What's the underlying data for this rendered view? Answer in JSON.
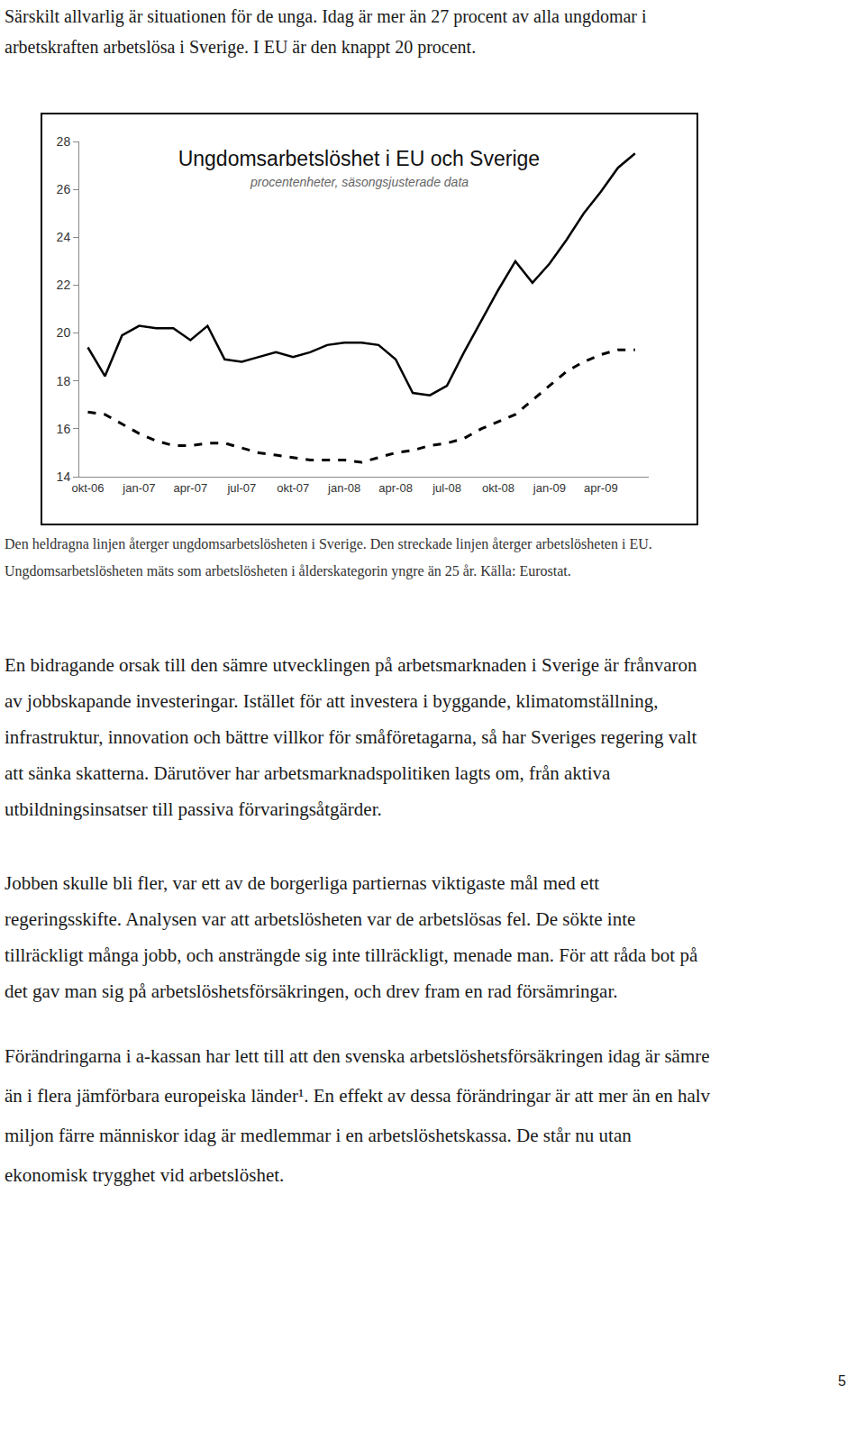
{
  "intro": [
    "Särskilt allvarlig är situationen för de unga. Idag är mer än 27 procent av alla ungdomar i",
    "arbetskraften arbetslösa i Sverige. I EU är den knappt 20 procent."
  ],
  "chart_data": {
    "type": "line",
    "title": "Ungdomsarbetslöshet i EU och Sverige",
    "subtitle": "procentenheter, säsongsjusterade data",
    "categories": [
      "okt-06",
      null,
      null,
      "jan-07",
      null,
      null,
      "apr-07",
      null,
      null,
      "jul-07",
      null,
      null,
      "okt-07",
      null,
      null,
      "jan-08",
      null,
      null,
      "apr-08",
      null,
      null,
      "jul-08",
      null,
      null,
      "okt-08",
      null,
      null,
      "jan-09",
      null,
      null,
      "apr-09",
      null,
      null
    ],
    "series": [
      {
        "color": "#000000",
        "line_style": "solid",
        "values": [
          19.4,
          18.2,
          19.9,
          20.3,
          20.2,
          20.2,
          19.7,
          20.3,
          18.9,
          18.8,
          19.0,
          19.2,
          19.0,
          19.2,
          19.5,
          19.6,
          19.6,
          19.5,
          18.9,
          17.5,
          17.4,
          17.8,
          19.2,
          20.5,
          21.8,
          23.0,
          22.1,
          22.9,
          23.9,
          25.0,
          25.9,
          26.9,
          27.5
        ]
      },
      {
        "color": "#000000",
        "line_style": "dash",
        "values": [
          16.7,
          16.6,
          16.2,
          15.8,
          15.5,
          15.3,
          15.3,
          15.4,
          15.4,
          15.2,
          15.0,
          14.9,
          14.8,
          14.7,
          14.7,
          14.7,
          14.6,
          14.8,
          15.0,
          15.1,
          15.3,
          15.4,
          15.6,
          16.0,
          16.3,
          16.6,
          17.2,
          17.8,
          18.4,
          18.8,
          19.1,
          19.3,
          19.3
        ]
      }
    ],
    "ylim": [
      14,
      28
    ],
    "yticks": [
      14,
      16,
      18,
      20,
      22,
      24,
      26,
      28
    ],
    "grid": false
  },
  "caption": [
    "Den heldragna linjen återger ungdomsarbetslösheten i Sverige. Den streckade linjen återger arbetslösheten i EU.",
    "Ungdomsarbetslösheten mäts som arbetslösheten i ålderskategorin yngre än 25 år. Källa: Eurostat."
  ],
  "paragraphs": [
    [
      "En bidragande orsak till den sämre utvecklingen på arbetsmarknaden i Sverige är frånvaron",
      "av jobbskapande investeringar. Istället för att investera i byggande, klimatomställning,",
      "infrastruktur, innovation och bättre villkor för småföretagarna, så har Sveriges regering valt",
      "att sänka skatterna. Därutöver har arbetsmarknadspolitiken lagts om, från aktiva",
      "utbildningsinsatser till passiva förvaringsåtgärder."
    ],
    [
      "Jobben skulle bli fler, var ett av de borgerliga partiernas viktigaste mål med ett",
      "regeringsskifte. Analysen var att arbetslösheten var de arbetslösas fel. De sökte inte",
      "tillräckligt många jobb, och ansträngde sig inte tillräckligt, menade man. För att råda bot på",
      "det gav man sig på arbetslöshetsförsäkringen, och drev fram en rad försämringar."
    ],
    [
      "Förändringarna i a-kassan har lett till att den svenska arbetslöshetsförsäkringen idag är sämre",
      "än i flera jämförbara europeiska länder¹. En effekt av dessa förändringar är att mer än en halv",
      "miljon färre människor idag är medlemmar i en arbetslöshetskassa. De står nu utan",
      "ekonomisk trygghet vid arbetslöshet."
    ]
  ],
  "page_number": 5
}
